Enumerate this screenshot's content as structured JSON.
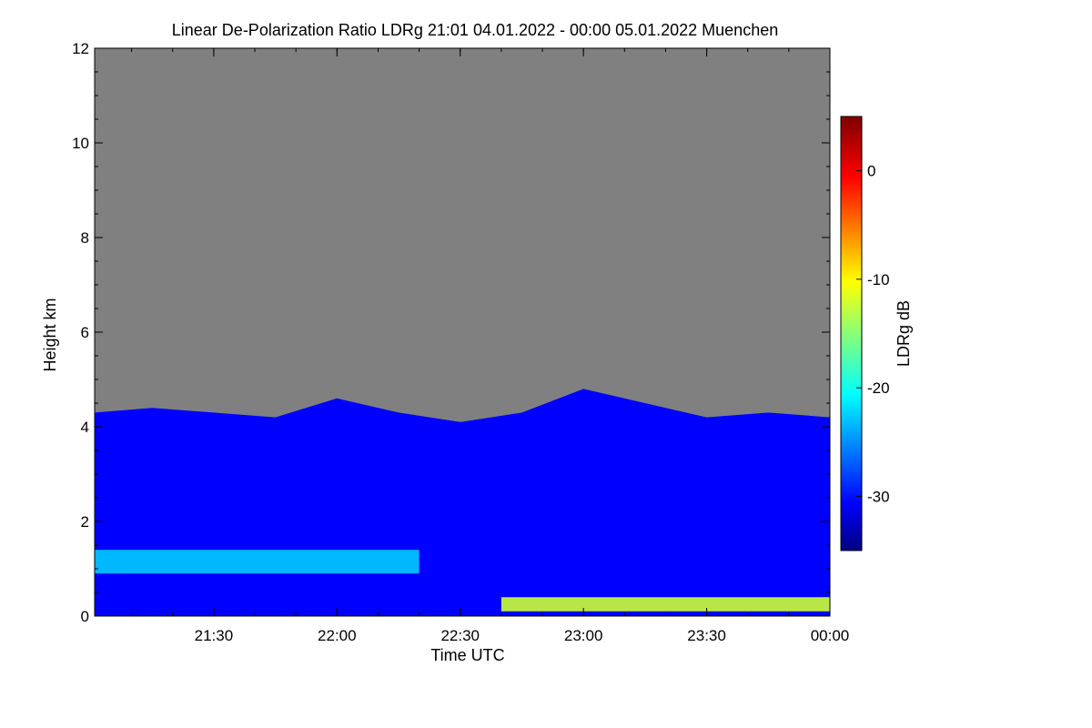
{
  "chart_data": {
    "type": "heatmap",
    "title": "Linear De-Polarization Ratio LDRg   21:01 04.01.2022 - 00:00 05.01.2022 Muenchen",
    "xlabel": "Time UTC",
    "ylabel": "Height km",
    "colorbar_label": "LDRg dB",
    "x_range": [
      "21:01",
      "00:00"
    ],
    "x_ticks": [
      "21:30",
      "22:00",
      "22:30",
      "23:00",
      "23:30",
      "00:00"
    ],
    "ylim": [
      0,
      12
    ],
    "y_ticks": [
      "0",
      "2",
      "4",
      "6",
      "8",
      "10",
      "12"
    ],
    "colorbar_range": [
      -35,
      5
    ],
    "colorbar_ticks": [
      "0",
      "-10",
      "-20",
      "-30"
    ],
    "colorbar_colormap": "jet",
    "no_signal_color": "#808080",
    "cloud_top_km": [
      {
        "time": "21:01",
        "height": 4.3
      },
      {
        "time": "21:15",
        "height": 4.4
      },
      {
        "time": "21:30",
        "height": 4.3
      },
      {
        "time": "21:45",
        "height": 4.2
      },
      {
        "time": "22:00",
        "height": 4.6
      },
      {
        "time": "22:15",
        "height": 4.3
      },
      {
        "time": "22:30",
        "height": 4.1
      },
      {
        "time": "22:45",
        "height": 4.3
      },
      {
        "time": "23:00",
        "height": 4.8
      },
      {
        "time": "23:15",
        "height": 4.5
      },
      {
        "time": "23:30",
        "height": 4.2
      },
      {
        "time": "23:45",
        "height": 4.3
      },
      {
        "time": "00:00",
        "height": 4.2
      }
    ],
    "features": [
      {
        "name": "lower layer",
        "time_start": "21:01",
        "time_end": "22:20",
        "height_bottom": 0.9,
        "height_top": 1.4,
        "ldr_db": -22
      },
      {
        "name": "near-surface layer",
        "time_start": "22:40",
        "time_end": "00:00",
        "height_bottom": 0.1,
        "height_top": 0.4,
        "ldr_db": -12
      }
    ]
  }
}
